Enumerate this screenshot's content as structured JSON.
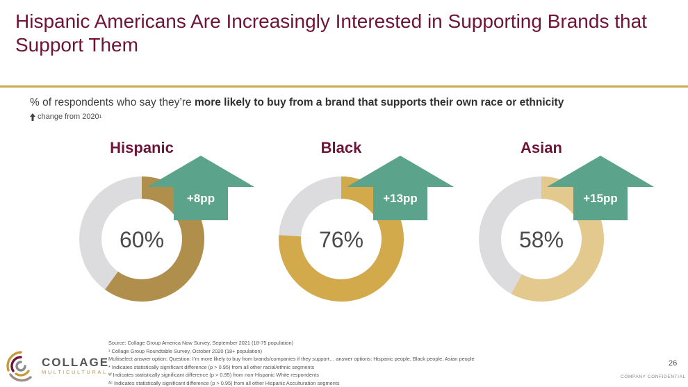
{
  "slide": {
    "title": "Hispanic Americans Are Increasingly Interested in Supporting Brands that Support Them",
    "subtitle_prefix": "% of respondents who say they’re ",
    "subtitle_bold": "more likely to buy from a brand that supports their own race or ethnicity",
    "legend_text": "change from 2020",
    "legend_sup": "1",
    "page_number": "26",
    "confidential": "COMPANY CONFIDENTIAL"
  },
  "logo": {
    "main": "COLLAGE",
    "sub": "MULTICULTURAL"
  },
  "footnotes": [
    "Source: Collage Group America Now Survey, September 2021 (18-75 population)",
    "¹ Collage Group Roundtable Survey, October 2020 (18+ population)",
    "Multiselect answer option; Question: I’m more likely to buy from brands/companies if they support… answer options: Hispanic people, Black people, Asian people",
    "* Indicates statistically significant difference (p > 0.95) from all other racial/ethnic segments",
    "ᵂ Indicates statistically significant difference (p > 0.95) from non-Hispanic White respondents",
    "ᴬᶜ Indicates statistically significant difference (p > 0.95) from all other Hispanic Acculturation segments"
  ],
  "colors": {
    "title": "#6e1437",
    "rule": "#c9a94e",
    "remainder": "#dcdcde",
    "arrow": "#5ca38b"
  },
  "chart_data": {
    "type": "donut",
    "unit": "%",
    "series": [
      {
        "name": "Hispanic",
        "value": 60,
        "value_label": "60%",
        "change_label": "+8pp",
        "color": "#b08f4c"
      },
      {
        "name": "Black",
        "value": 76,
        "value_label": "76%",
        "change_label": "+13pp",
        "color": "#d2a94b"
      },
      {
        "name": "Asian",
        "value": 58,
        "value_label": "58%",
        "change_label": "+15pp",
        "color": "#e3c98e"
      }
    ]
  }
}
